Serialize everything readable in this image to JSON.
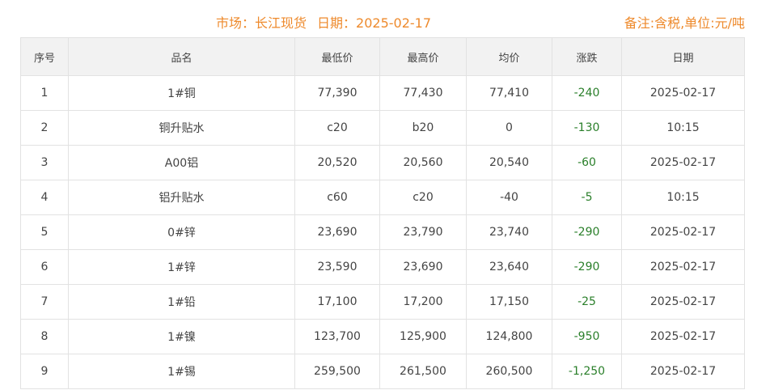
{
  "header": {
    "market": "市场：长江现货",
    "date": "日期：2025-02-17",
    "note": "备注:含税,单位:元/吨"
  },
  "columns": [
    "序号",
    "品名",
    "最低价",
    "最高价",
    "均价",
    "涨跌",
    "日期"
  ],
  "rows": [
    [
      "1",
      "1#铜",
      "77,390",
      "77,430",
      "77,410",
      "-240",
      "2025-02-17"
    ],
    [
      "2",
      "铜升贴水",
      "c20",
      "b20",
      "0",
      "-130",
      "10:15"
    ],
    [
      "3",
      "A00铝",
      "20,520",
      "20,560",
      "20,540",
      "-60",
      "2025-02-17"
    ],
    [
      "4",
      "铝升贴水",
      "c60",
      "c20",
      "-40",
      "-5",
      "10:15"
    ],
    [
      "5",
      "0#锌",
      "23,690",
      "23,790",
      "23,740",
      "-290",
      "2025-02-17"
    ],
    [
      "6",
      "1#锌",
      "23,590",
      "23,690",
      "23,640",
      "-290",
      "2025-02-17"
    ],
    [
      "7",
      "1#铅",
      "17,100",
      "17,200",
      "17,150",
      "-25",
      "2025-02-17"
    ],
    [
      "8",
      "1#镍",
      "123,700",
      "125,900",
      "124,800",
      "-950",
      "2025-02-17"
    ],
    [
      "9",
      "1#锡",
      "259,500",
      "261,500",
      "260,500",
      "-1,250",
      "2025-02-17"
    ]
  ],
  "colors": {
    "accent": "#ee8a2c",
    "down": "#2a7f2a"
  }
}
